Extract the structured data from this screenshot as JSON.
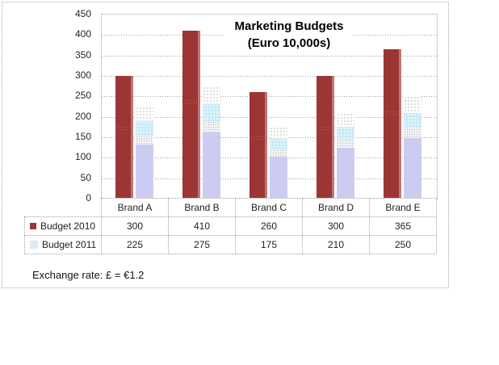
{
  "chart_data": {
    "type": "bar",
    "title": "Marketing Budgets (Euro 10,000s)",
    "title_lines": [
      "Marketing Budgets",
      "(Euro 10,000s)"
    ],
    "categories": [
      "Brand A",
      "Brand B",
      "Brand C",
      "Brand D",
      "Brand E"
    ],
    "series": [
      {
        "name": "Budget 2010",
        "values": [
          300,
          410,
          260,
          300,
          365
        ],
        "color": "#9c3634"
      },
      {
        "name": "Budget 2011",
        "values": [
          225,
          275,
          175,
          210,
          250
        ],
        "color": "#ccccf2"
      }
    ],
    "ylabel": "",
    "xlabel": "",
    "ylim": [
      0,
      450
    ],
    "ytick_step": 50,
    "yticks": [
      "450",
      "400",
      "350",
      "300",
      "250",
      "200",
      "150",
      "100",
      "50",
      "0"
    ],
    "grid": true,
    "gridline_style": "dotted",
    "legend_position": "data-table-left",
    "data_table_shown": true
  },
  "footnote": "Exchange rate: £ = €1.2",
  "colors": {
    "series_2010": "#9c3634",
    "series_2011_lavender": "#ccccf2",
    "series_2011_cyan_band": "#c8eaf8",
    "grid_gray": "#9e9e9e"
  }
}
